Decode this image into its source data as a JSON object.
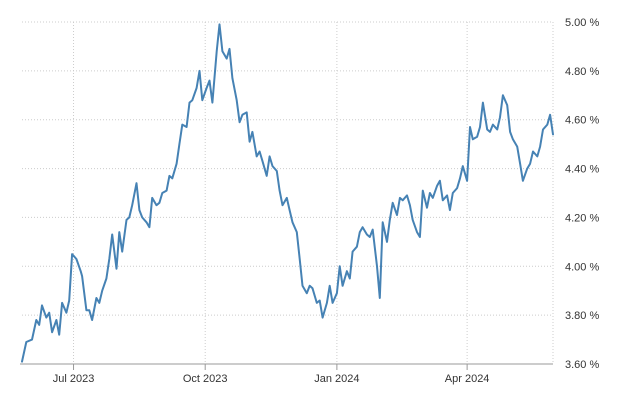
{
  "chart_data": {
    "type": "line",
    "title": "",
    "xlabel": "",
    "ylabel": "",
    "x_tick_labels": [
      "Jul 2023",
      "Oct 2023",
      "Jan 2024",
      "Apr 2024"
    ],
    "x_tick_dates": [
      "2023-07-01",
      "2023-10-01",
      "2024-01-01",
      "2024-04-01"
    ],
    "x_range": [
      "2023-05-26",
      "2024-05-31"
    ],
    "y_tick_labels": [
      "3.60 %",
      "3.80 %",
      "4.00 %",
      "4.20 %",
      "4.40 %",
      "4.60 %",
      "4.80 %",
      "5.00 %"
    ],
    "y_ticks": [
      3.6,
      3.8,
      4.0,
      4.2,
      4.4,
      4.6,
      4.8,
      5.0
    ],
    "ylim": [
      3.6,
      5.0
    ],
    "grid": true,
    "legend": "none",
    "line_color": "#4682b4",
    "series": [
      {
        "x": [
          "2023-05-26",
          "2023-05-29",
          "2023-06-02",
          "2023-06-05",
          "2023-06-07",
          "2023-06-09",
          "2023-06-12",
          "2023-06-14",
          "2023-06-16",
          "2023-06-19",
          "2023-06-21",
          "2023-06-23",
          "2023-06-26",
          "2023-06-28",
          "2023-06-30",
          "2023-07-03",
          "2023-07-06",
          "2023-07-07",
          "2023-07-10",
          "2023-07-12",
          "2023-07-14",
          "2023-07-17",
          "2023-07-19",
          "2023-07-21",
          "2023-07-24",
          "2023-07-26",
          "2023-07-28",
          "2023-07-31",
          "2023-08-02",
          "2023-08-04",
          "2023-08-07",
          "2023-08-09",
          "2023-08-11",
          "2023-08-14",
          "2023-08-16",
          "2023-08-18",
          "2023-08-21",
          "2023-08-23",
          "2023-08-25",
          "2023-08-28",
          "2023-08-30",
          "2023-09-01",
          "2023-09-04",
          "2023-09-06",
          "2023-09-08",
          "2023-09-11",
          "2023-09-13",
          "2023-09-15",
          "2023-09-18",
          "2023-09-20",
          "2023-09-22",
          "2023-09-25",
          "2023-09-27",
          "2023-09-29",
          "2023-10-02",
          "2023-10-04",
          "2023-10-06",
          "2023-10-09",
          "2023-10-11",
          "2023-10-13",
          "2023-10-16",
          "2023-10-18",
          "2023-10-20",
          "2023-10-23",
          "2023-10-25",
          "2023-10-27",
          "2023-10-30",
          "2023-11-01",
          "2023-11-03",
          "2023-11-06",
          "2023-11-08",
          "2023-11-10",
          "2023-11-13",
          "2023-11-15",
          "2023-11-17",
          "2023-11-20",
          "2023-11-22",
          "2023-11-24",
          "2023-11-27",
          "2023-11-29",
          "2023-12-01",
          "2023-12-04",
          "2023-12-06",
          "2023-12-08",
          "2023-12-11",
          "2023-12-13",
          "2023-12-15",
          "2023-12-18",
          "2023-12-20",
          "2023-12-22",
          "2023-12-25",
          "2023-12-27",
          "2023-12-29",
          "2024-01-01",
          "2024-01-03",
          "2024-01-05",
          "2024-01-08",
          "2024-01-10",
          "2024-01-12",
          "2024-01-15",
          "2024-01-17",
          "2024-01-19",
          "2024-01-22",
          "2024-01-24",
          "2024-01-26",
          "2024-01-29",
          "2024-01-31",
          "2024-02-02",
          "2024-02-05",
          "2024-02-07",
          "2024-02-09",
          "2024-02-12",
          "2024-02-14",
          "2024-02-16",
          "2024-02-19",
          "2024-02-21",
          "2024-02-23",
          "2024-02-26",
          "2024-02-28",
          "2024-03-01",
          "2024-03-04",
          "2024-03-06",
          "2024-03-08",
          "2024-03-11",
          "2024-03-13",
          "2024-03-15",
          "2024-03-18",
          "2024-03-20",
          "2024-03-22",
          "2024-03-25",
          "2024-03-27",
          "2024-03-29",
          "2024-04-01",
          "2024-04-03",
          "2024-04-05",
          "2024-04-08",
          "2024-04-10",
          "2024-04-12",
          "2024-04-15",
          "2024-04-17",
          "2024-04-19",
          "2024-04-22",
          "2024-04-24",
          "2024-04-26",
          "2024-04-29",
          "2024-05-01",
          "2024-05-03",
          "2024-05-06",
          "2024-05-08",
          "2024-05-10",
          "2024-05-13",
          "2024-05-15",
          "2024-05-17",
          "2024-05-20",
          "2024-05-22",
          "2024-05-24",
          "2024-05-27",
          "2024-05-29",
          "2024-05-31"
        ],
        "values": [
          3.61,
          3.69,
          3.7,
          3.78,
          3.76,
          3.84,
          3.79,
          3.81,
          3.73,
          3.78,
          3.72,
          3.85,
          3.81,
          3.86,
          4.05,
          4.03,
          3.98,
          3.96,
          3.82,
          3.82,
          3.78,
          3.87,
          3.85,
          3.9,
          3.95,
          4.03,
          4.13,
          3.99,
          4.14,
          4.06,
          4.19,
          4.2,
          4.25,
          4.34,
          4.23,
          4.2,
          4.18,
          4.16,
          4.28,
          4.25,
          4.26,
          4.3,
          4.31,
          4.37,
          4.36,
          4.42,
          4.5,
          4.58,
          4.57,
          4.67,
          4.68,
          4.73,
          4.8,
          4.68,
          4.73,
          4.76,
          4.67,
          4.88,
          4.99,
          4.88,
          4.85,
          4.89,
          4.77,
          4.68,
          4.59,
          4.62,
          4.63,
          4.51,
          4.55,
          4.45,
          4.47,
          4.43,
          4.37,
          4.45,
          4.41,
          4.39,
          4.31,
          4.25,
          4.28,
          4.23,
          4.18,
          4.14,
          4.03,
          3.92,
          3.89,
          3.92,
          3.91,
          3.85,
          3.86,
          3.79,
          3.85,
          3.92,
          3.85,
          3.89,
          4.0,
          3.92,
          3.98,
          3.95,
          4.06,
          4.08,
          4.14,
          4.16,
          4.13,
          4.12,
          4.15,
          4.0,
          3.87,
          4.18,
          4.1,
          4.19,
          4.26,
          4.21,
          4.28,
          4.27,
          4.29,
          4.25,
          4.19,
          4.14,
          4.12,
          4.31,
          4.24,
          4.3,
          4.28,
          4.33,
          4.35,
          4.27,
          4.29,
          4.23,
          4.3,
          4.32,
          4.36,
          4.41,
          4.35,
          4.57,
          4.52,
          4.53,
          4.57,
          4.67,
          4.56,
          4.55,
          4.58,
          4.56,
          4.61,
          4.7,
          4.66,
          4.55,
          4.52,
          4.49,
          4.42,
          4.35,
          4.4,
          4.42,
          4.47,
          4.45,
          4.49,
          4.56,
          4.58,
          4.62,
          4.54
        ]
      }
    ]
  }
}
